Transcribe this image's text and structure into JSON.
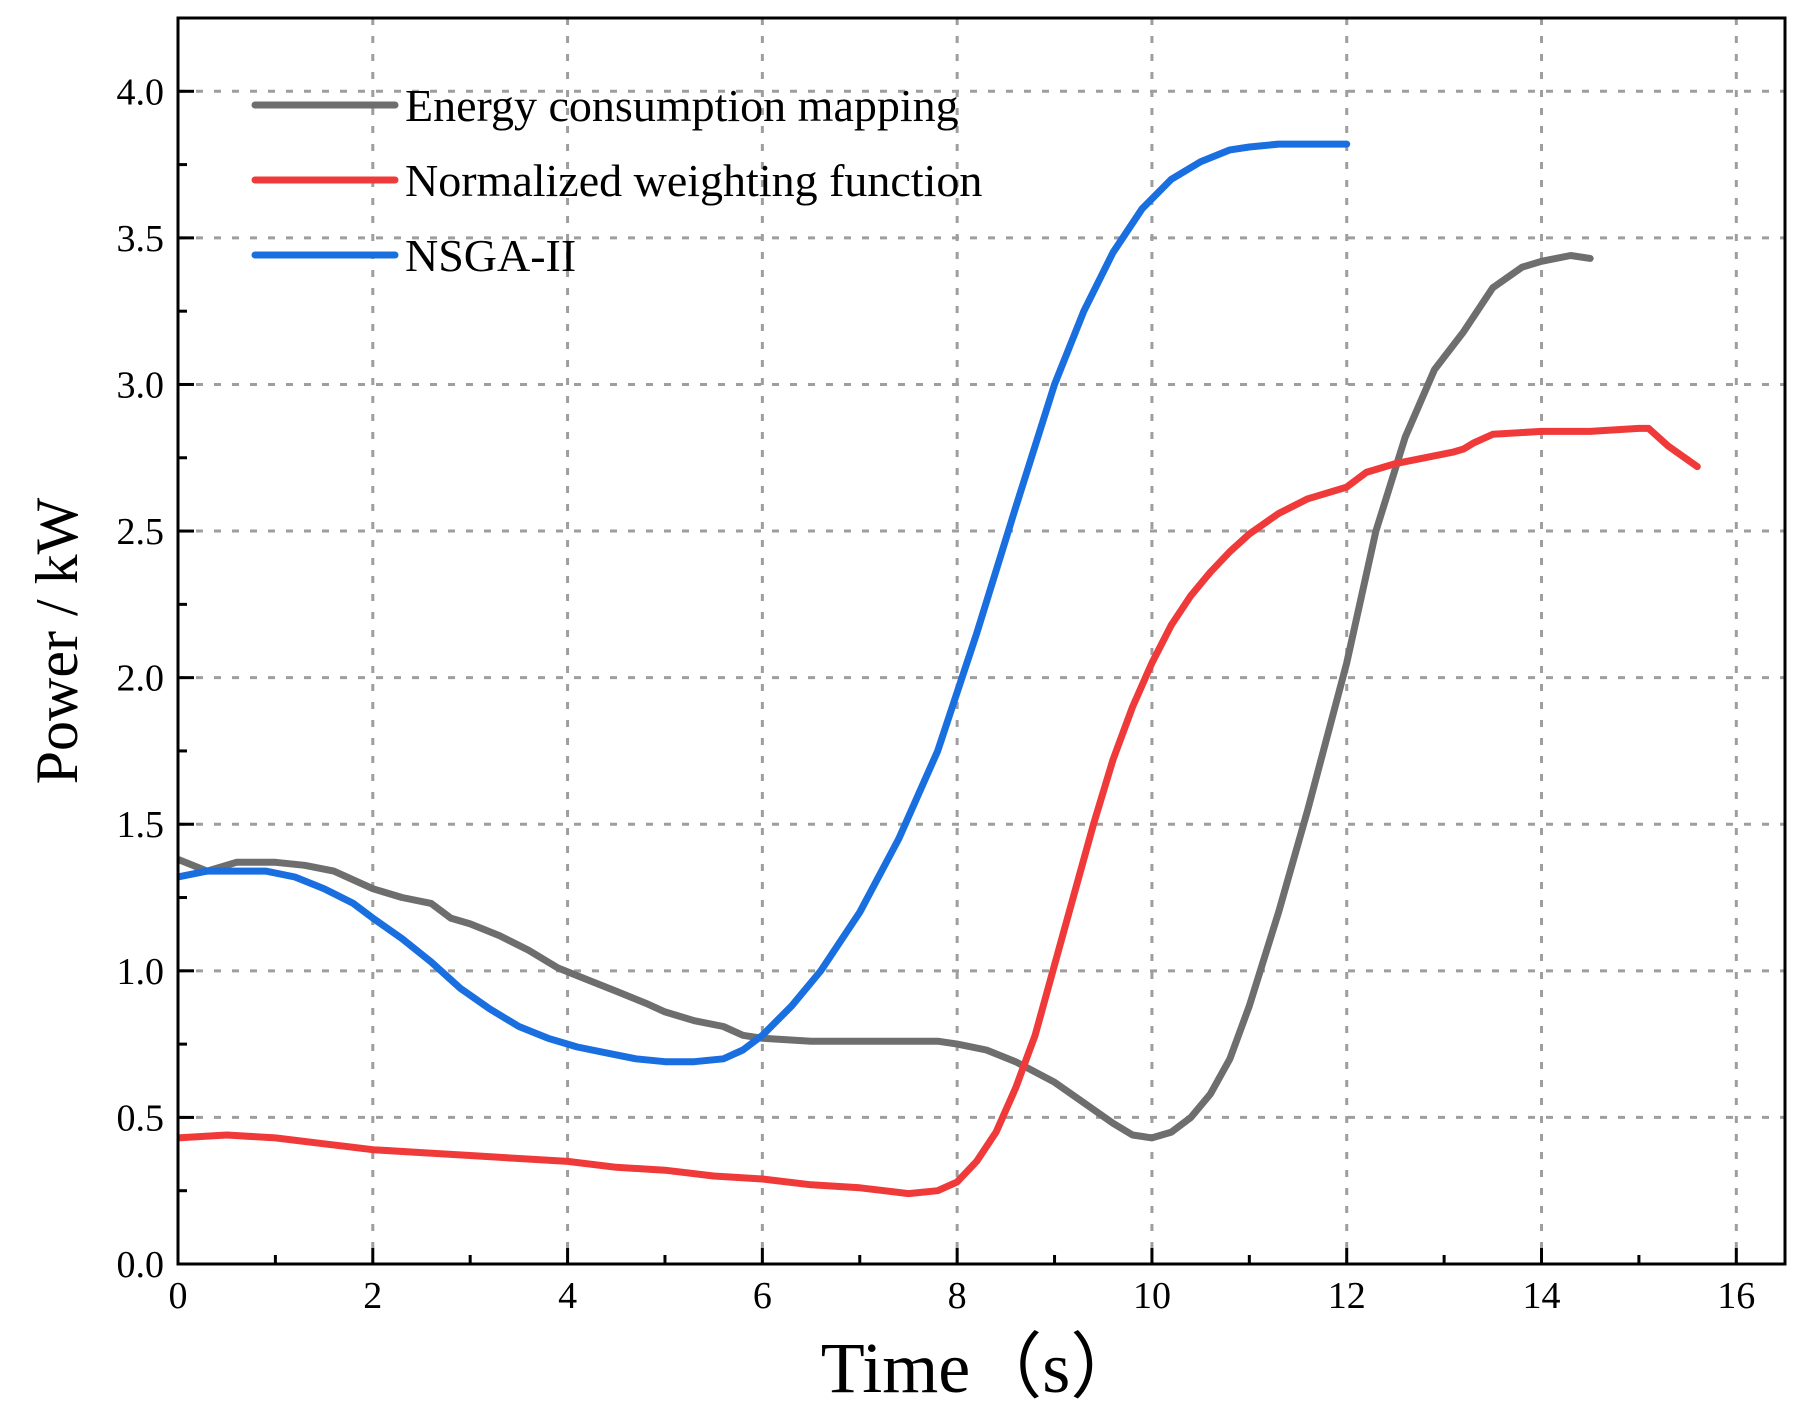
{
  "chart_data": {
    "type": "line",
    "xlabel": "Time（s）",
    "ylabel": "Power / kW",
    "xlim": [
      0,
      16.5
    ],
    "ylim": [
      0,
      4.25
    ],
    "xticks": [
      0,
      2,
      4,
      6,
      8,
      10,
      12,
      14,
      16
    ],
    "yticks": [
      0.0,
      0.5,
      1.0,
      1.5,
      2.0,
      2.5,
      3.0,
      3.5,
      4.0
    ],
    "xtick_labels": [
      "0",
      "2",
      "4",
      "6",
      "8",
      "10",
      "12",
      "14",
      "16"
    ],
    "ytick_labels": [
      "0.0",
      "0.5",
      "1.0",
      "1.5",
      "2.0",
      "2.5",
      "3.0",
      "3.5",
      "4.0"
    ],
    "grid": true,
    "legend_position": "top-left",
    "series": [
      {
        "name": "Energy consumption mapping",
        "color": "#6e6e6e",
        "x": [
          0,
          0.3,
          0.6,
          1.0,
          1.3,
          1.6,
          2.0,
          2.3,
          2.6,
          2.8,
          3.0,
          3.3,
          3.6,
          3.9,
          4.2,
          4.5,
          4.8,
          5.0,
          5.3,
          5.6,
          5.8,
          6.0,
          6.5,
          7.0,
          7.5,
          7.8,
          8.0,
          8.3,
          8.6,
          9.0,
          9.3,
          9.6,
          9.8,
          10.0,
          10.2,
          10.4,
          10.6,
          10.8,
          11.0,
          11.3,
          11.6,
          12.0,
          12.3,
          12.6,
          12.9,
          13.2,
          13.5,
          13.8,
          14.0,
          14.3,
          14.5
        ],
        "y": [
          1.38,
          1.34,
          1.37,
          1.37,
          1.36,
          1.34,
          1.28,
          1.25,
          1.23,
          1.18,
          1.16,
          1.12,
          1.07,
          1.01,
          0.97,
          0.93,
          0.89,
          0.86,
          0.83,
          0.81,
          0.78,
          0.77,
          0.76,
          0.76,
          0.76,
          0.76,
          0.75,
          0.73,
          0.69,
          0.62,
          0.55,
          0.48,
          0.44,
          0.43,
          0.45,
          0.5,
          0.58,
          0.7,
          0.88,
          1.2,
          1.55,
          2.05,
          2.5,
          2.82,
          3.05,
          3.18,
          3.33,
          3.4,
          3.42,
          3.44,
          3.43
        ]
      },
      {
        "name": "Normalized weighting function",
        "color": "#f03a3a",
        "x": [
          0,
          0.5,
          1.0,
          1.5,
          2.0,
          2.5,
          3.0,
          3.5,
          4.0,
          4.5,
          5.0,
          5.5,
          6.0,
          6.5,
          7.0,
          7.5,
          7.8,
          8.0,
          8.2,
          8.4,
          8.6,
          8.8,
          9.0,
          9.2,
          9.4,
          9.6,
          9.8,
          10.0,
          10.2,
          10.4,
          10.6,
          10.8,
          11.0,
          11.3,
          11.6,
          12.0,
          12.2,
          12.5,
          12.8,
          13.1,
          13.2,
          13.3,
          13.5,
          14.0,
          14.5,
          15.0,
          15.1,
          15.3,
          15.6
        ],
        "y": [
          0.43,
          0.44,
          0.43,
          0.41,
          0.39,
          0.38,
          0.37,
          0.36,
          0.35,
          0.33,
          0.32,
          0.3,
          0.29,
          0.27,
          0.26,
          0.24,
          0.25,
          0.28,
          0.35,
          0.45,
          0.6,
          0.78,
          1.02,
          1.26,
          1.5,
          1.72,
          1.9,
          2.05,
          2.18,
          2.28,
          2.36,
          2.43,
          2.49,
          2.56,
          2.61,
          2.65,
          2.7,
          2.73,
          2.75,
          2.77,
          2.78,
          2.8,
          2.83,
          2.84,
          2.84,
          2.85,
          2.85,
          2.79,
          2.72
        ]
      },
      {
        "name": "NSGA-II",
        "color": "#1a6fe0",
        "x": [
          0,
          0.3,
          0.6,
          0.9,
          1.2,
          1.5,
          1.8,
          2.0,
          2.3,
          2.6,
          2.9,
          3.2,
          3.5,
          3.8,
          4.1,
          4.4,
          4.7,
          5.0,
          5.3,
          5.6,
          5.8,
          6.0,
          6.3,
          6.6,
          7.0,
          7.4,
          7.8,
          8.2,
          8.6,
          9.0,
          9.3,
          9.6,
          9.9,
          10.2,
          10.5,
          10.8,
          11.0,
          11.3,
          11.6,
          12.0
        ],
        "y": [
          1.32,
          1.34,
          1.34,
          1.34,
          1.32,
          1.28,
          1.23,
          1.18,
          1.11,
          1.03,
          0.94,
          0.87,
          0.81,
          0.77,
          0.74,
          0.72,
          0.7,
          0.69,
          0.69,
          0.7,
          0.73,
          0.78,
          0.88,
          1.0,
          1.2,
          1.45,
          1.75,
          2.15,
          2.58,
          3.0,
          3.25,
          3.45,
          3.6,
          3.7,
          3.76,
          3.8,
          3.81,
          3.82,
          3.82,
          3.82
        ]
      }
    ]
  }
}
